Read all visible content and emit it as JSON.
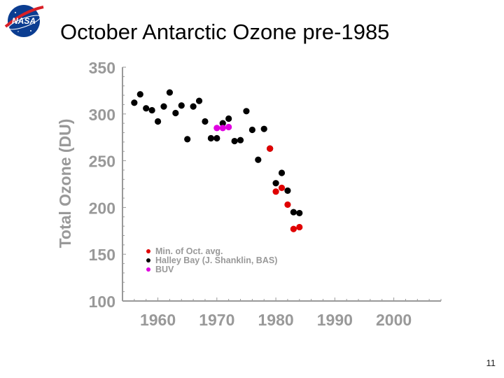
{
  "slide": {
    "title": "October Antarctic Ozone pre-1985",
    "number": "11",
    "logo_text": "NASA"
  },
  "colors": {
    "axis_text": "#999999",
    "axis_line": "#999999",
    "min_oct_avg": "#e00000",
    "halley_bay": "#000000",
    "buv": "#e000e0"
  },
  "chart_data": {
    "type": "scatter",
    "title": "",
    "xlabel": "",
    "ylabel": "Total Ozone (DU)",
    "xlim": [
      1954,
      2008
    ],
    "ylim": [
      100,
      350
    ],
    "x_ticks": [
      "1960",
      "1970",
      "1980",
      "1990",
      "2000"
    ],
    "y_ticks": [
      "100",
      "150",
      "200",
      "250",
      "300",
      "350"
    ],
    "grid": false,
    "legend_position": "lower-left",
    "series": [
      {
        "name": "Halley Bay (J. Shanklin, BAS)",
        "color": "#000000",
        "points": [
          [
            1956,
            312
          ],
          [
            1957,
            321
          ],
          [
            1958,
            306
          ],
          [
            1959,
            304
          ],
          [
            1960,
            292
          ],
          [
            1961,
            308
          ],
          [
            1962,
            323
          ],
          [
            1963,
            301
          ],
          [
            1964,
            309
          ],
          [
            1965,
            273
          ],
          [
            1966,
            308
          ],
          [
            1967,
            314
          ],
          [
            1968,
            292
          ],
          [
            1969,
            274
          ],
          [
            1970,
            274
          ],
          [
            1971,
            290
          ],
          [
            1972,
            295
          ],
          [
            1973,
            271
          ],
          [
            1974,
            272
          ],
          [
            1975,
            303
          ],
          [
            1976,
            283
          ],
          [
            1977,
            251
          ],
          [
            1978,
            284
          ],
          [
            1979,
            263
          ],
          [
            1980,
            226
          ],
          [
            1981,
            237
          ],
          [
            1982,
            218
          ],
          [
            1983,
            195
          ],
          [
            1984,
            194
          ]
        ]
      },
      {
        "name": "BUV",
        "color": "#e000e0",
        "points": [
          [
            1970,
            285
          ],
          [
            1971,
            285
          ],
          [
            1972,
            286
          ]
        ]
      },
      {
        "name": "Min. of Oct. avg.",
        "color": "#e00000",
        "points": [
          [
            1979,
            263
          ],
          [
            1980,
            217
          ],
          [
            1981,
            221
          ],
          [
            1982,
            203
          ],
          [
            1983,
            177
          ],
          [
            1984,
            179
          ]
        ]
      }
    ],
    "legend": [
      {
        "label": "Min. of Oct. avg.",
        "color": "#e00000"
      },
      {
        "label": "Halley Bay (J. Shanklin, BAS)",
        "color": "#000000"
      },
      {
        "label": "BUV",
        "color": "#e000e0"
      }
    ]
  }
}
